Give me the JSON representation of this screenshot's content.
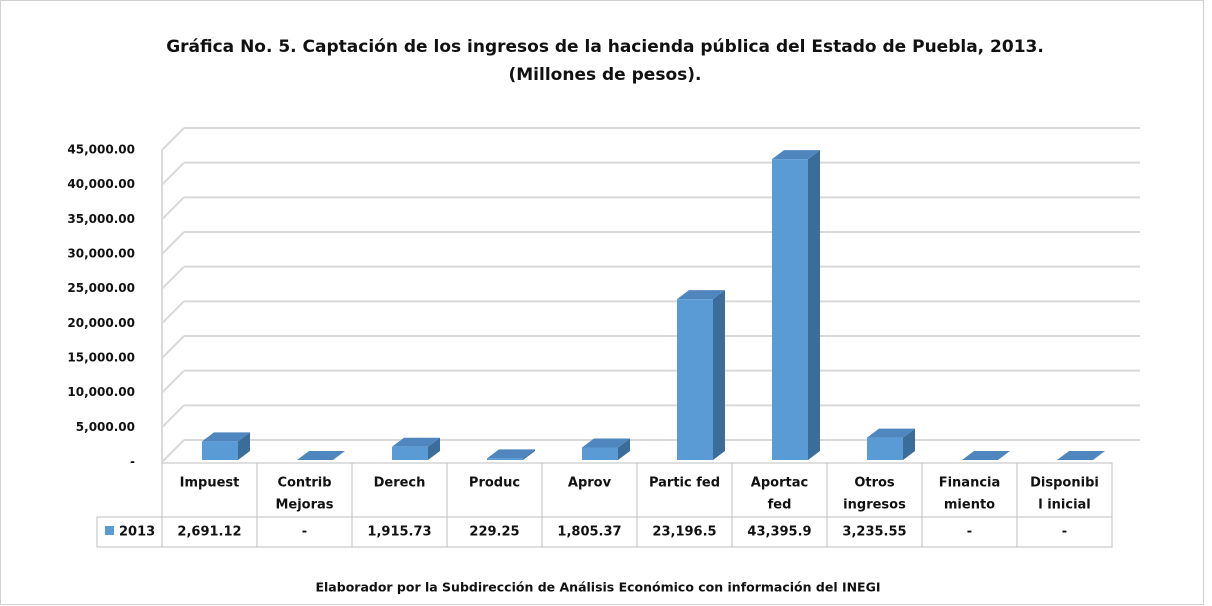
{
  "chart_data": {
    "type": "bar3d",
    "title": [
      "Gráfica No.  5. Captación de los ingresos de la hacienda pública del Estado de Puebla, 2013.",
      "(Millones de pesos)."
    ],
    "categories": [
      [
        "Impuest"
      ],
      [
        "Contrib",
        "Mejoras"
      ],
      [
        "Derech"
      ],
      [
        "Produc"
      ],
      [
        "Aprov"
      ],
      [
        "Partic fed"
      ],
      [
        "Aportac",
        "fed"
      ],
      [
        "Otros",
        "ingresos"
      ],
      [
        "Financia",
        "miento"
      ],
      [
        "Disponibi",
        "l inicial"
      ]
    ],
    "series": [
      {
        "name": "2013",
        "color": "#5b9bd5",
        "values": [
          2691.12,
          0,
          1915.73,
          229.25,
          1805.37,
          23196.5,
          43395.9,
          3235.55,
          0,
          0
        ],
        "value_labels": [
          "2,691.12",
          "-",
          "1,915.73",
          "229.25",
          "1,805.37",
          "23,196.5",
          "43,395.9",
          "3,235.55",
          "-",
          "-"
        ]
      }
    ],
    "ylim": [
      0,
      45000
    ],
    "yticks": [
      {
        "value": 0,
        "label": "-"
      },
      {
        "value": 5000,
        "label": "5,000.00"
      },
      {
        "value": 10000,
        "label": "10,000.00"
      },
      {
        "value": 15000,
        "label": "15,000.00"
      },
      {
        "value": 20000,
        "label": "20,000.00"
      },
      {
        "value": 25000,
        "label": "25,000.00"
      },
      {
        "value": 30000,
        "label": "30,000.00"
      },
      {
        "value": 35000,
        "label": "35,000.00"
      },
      {
        "value": 40000,
        "label": "40,000.00"
      },
      {
        "value": 45000,
        "label": "45,000.00"
      }
    ],
    "grid": true,
    "note": "Elaborador por la Subdirección de Análisis Económico con información del INEGI"
  }
}
